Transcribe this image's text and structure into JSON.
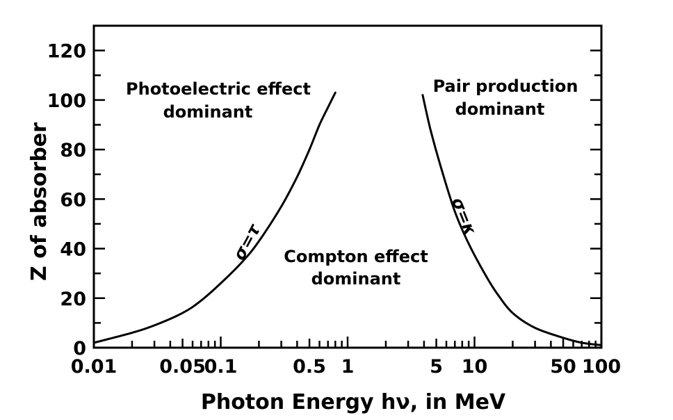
{
  "chart_data": {
    "type": "line",
    "xscale": "log",
    "xlabel": "Photon Energy hν, in MeV",
    "ylabel": "Z of absorber",
    "xlim": [
      0.01,
      100
    ],
    "ylim": [
      0,
      130
    ],
    "x_tick_labels": [
      {
        "value": 0.01,
        "label": "0.01"
      },
      {
        "value": 0.05,
        "label": "0.05"
      },
      {
        "value": 0.1,
        "label": "0.1"
      },
      {
        "value": 0.5,
        "label": "0.5"
      },
      {
        "value": 1,
        "label": "1"
      },
      {
        "value": 5,
        "label": "5"
      },
      {
        "value": 10,
        "label": "10"
      },
      {
        "value": 50,
        "label": "50"
      },
      {
        "value": 100,
        "label": "100"
      }
    ],
    "y_tick_labels": [
      {
        "value": 0,
        "label": "0"
      },
      {
        "value": 20,
        "label": "20"
      },
      {
        "value": 40,
        "label": "40"
      },
      {
        "value": 60,
        "label": "60"
      },
      {
        "value": 80,
        "label": "80"
      },
      {
        "value": 100,
        "label": "100"
      },
      {
        "value": 120,
        "label": "120"
      }
    ],
    "grid": false,
    "series": [
      {
        "name": "σ=τ",
        "points": [
          [
            0.01,
            2
          ],
          [
            0.02,
            6
          ],
          [
            0.03,
            9
          ],
          [
            0.05,
            14
          ],
          [
            0.07,
            19
          ],
          [
            0.1,
            26
          ],
          [
            0.15,
            35
          ],
          [
            0.2,
            43
          ],
          [
            0.3,
            57
          ],
          [
            0.4,
            69
          ],
          [
            0.5,
            80
          ],
          [
            0.6,
            90
          ],
          [
            0.7,
            97
          ],
          [
            0.8,
            103
          ]
        ]
      },
      {
        "name": "σ=κ",
        "points": [
          [
            3.9,
            102
          ],
          [
            4.5,
            88
          ],
          [
            5.5,
            72
          ],
          [
            7,
            55
          ],
          [
            9,
            42
          ],
          [
            12,
            30
          ],
          [
            15,
            22
          ],
          [
            20,
            14
          ],
          [
            30,
            8
          ],
          [
            50,
            4
          ],
          [
            70,
            2
          ],
          [
            100,
            1
          ]
        ]
      }
    ],
    "annotations": [
      {
        "id": "photo_line1",
        "text": "Photoelectric effect"
      },
      {
        "id": "photo_line2",
        "text": "dominant"
      },
      {
        "id": "compton_line1",
        "text": "Compton effect"
      },
      {
        "id": "compton_line2",
        "text": "dominant"
      },
      {
        "id": "pair_line1",
        "text": "Pair production"
      },
      {
        "id": "pair_line2",
        "text": "dominant"
      }
    ]
  }
}
